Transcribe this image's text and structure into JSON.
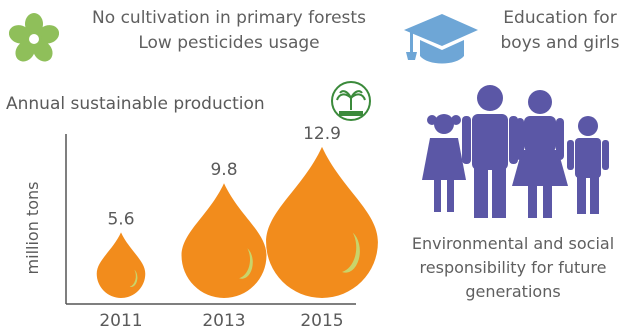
{
  "header": {
    "forest_line1": "No cultivation in primary forests",
    "forest_line2": "Low pesticides usage",
    "education_line1": "Education for",
    "education_line2": "boys and girls"
  },
  "icons": {
    "flower": "flower-icon",
    "cap": "graduation-cap-icon",
    "seal": "palm-seal-icon",
    "family": "family-icon"
  },
  "colors": {
    "flower": "#8fbf5a",
    "cap": "#6ea6d6",
    "family": "#5b57a6",
    "drop": "#f28c1c",
    "drop_highlight": "#c9d46a",
    "text": "#5a5a5a"
  },
  "responsibility": {
    "line1": "Environmental and social",
    "line2": "responsibility for future",
    "line3": "generations"
  },
  "chart_data": {
    "type": "bar",
    "title": "Annual sustainable production",
    "ylabel": "million tons",
    "xlabel": "",
    "categories": [
      "2011",
      "2013",
      "2015"
    ],
    "values": [
      5.6,
      9.8,
      12.9
    ],
    "value_labels": [
      "5.6",
      "9.8",
      "12.9"
    ],
    "ylim": [
      0,
      14
    ],
    "grid": false,
    "mark": "droplet"
  }
}
